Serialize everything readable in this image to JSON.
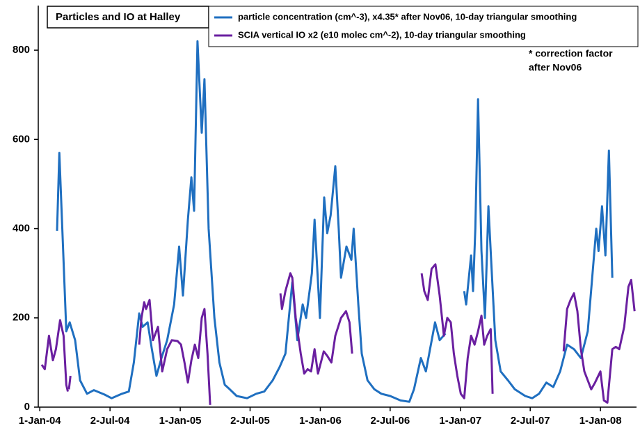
{
  "chart_data": {
    "type": "line",
    "title": "Particles and IO at Halley",
    "annotation": [
      "* correction factor",
      "after Nov06"
    ],
    "xlim": [
      "2003-12-28",
      "2008-04-04"
    ],
    "ylim": [
      0,
      900
    ],
    "yticks": [
      0,
      200,
      400,
      600,
      800
    ],
    "xticks": [
      {
        "value": "2004-01-01",
        "label": "1-Jan-04"
      },
      {
        "value": "2004-07-02",
        "label": "2-Jul-04"
      },
      {
        "value": "2005-01-01",
        "label": "1-Jan-05"
      },
      {
        "value": "2005-07-02",
        "label": "2-Jul-05"
      },
      {
        "value": "2006-01-01",
        "label": "1-Jan-06"
      },
      {
        "value": "2006-07-02",
        "label": "2-Jul-06"
      },
      {
        "value": "2007-01-01",
        "label": "1-Jan-07"
      },
      {
        "value": "2007-07-02",
        "label": "2-Jul-07"
      },
      {
        "value": "2008-01-01",
        "label": "1-Jan-08"
      }
    ],
    "series": [
      {
        "name": "particle concentration (cm^-3), x4.35* after Nov06, 10-day triangular smoothing",
        "color": "#1f6fc0",
        "x": [
          "2004-02-15",
          "2004-02-21",
          "2004-03-10",
          "2004-03-19",
          "2004-04-02",
          "2004-04-15",
          "2004-05-03",
          "2004-05-21",
          "2004-06-18",
          "2004-07-06",
          "2004-08-02",
          "2004-08-20",
          "2004-09-02",
          "2004-09-16",
          "2004-09-25",
          "2004-10-08",
          "2004-10-19",
          "2004-10-31",
          "2004-11-13",
          "2004-11-28",
          "2004-12-16",
          "2004-12-29",
          "2005-01-08",
          "2005-01-21",
          "2005-01-30",
          "2005-02-06",
          "2005-02-15",
          "2005-02-26",
          "2005-03-05",
          "2005-03-16",
          "2005-03-31",
          "2005-04-13",
          "2005-04-27",
          "2005-05-10",
          "2005-05-28",
          "2005-06-24",
          "2005-07-18",
          "2005-08-08",
          "2005-08-30",
          "2005-09-17",
          "2005-10-02",
          "2005-10-11",
          "2005-10-20",
          "2005-11-02",
          "2005-11-16",
          "2005-11-25",
          "2005-12-10",
          "2005-12-17",
          "2005-12-31",
          "2006-01-11",
          "2006-01-19",
          "2006-01-28",
          "2006-02-09",
          "2006-02-18",
          "2006-02-24",
          "2006-03-10",
          "2006-03-23",
          "2006-03-29",
          "2006-04-10",
          "2006-04-19",
          "2006-05-04",
          "2006-05-22",
          "2006-06-09",
          "2006-07-02",
          "2006-07-29",
          "2006-08-21",
          "2006-09-02",
          "2006-09-20",
          "2006-10-03",
          "2006-10-27",
          "2006-11-08",
          "2006-11-23",
          "2006-12-15",
          "2007-01-11",
          "2007-01-16",
          "2007-01-29",
          "2007-02-03",
          "2007-02-09",
          "2007-02-16",
          "2007-02-25",
          "2007-03-06",
          "2007-03-15",
          "2007-03-24",
          "2007-04-02",
          "2007-04-16",
          "2007-05-05",
          "2007-05-23",
          "2007-06-19",
          "2007-07-07",
          "2007-07-25",
          "2007-08-13",
          "2007-08-31",
          "2007-09-18",
          "2007-10-06",
          "2007-10-24",
          "2007-11-11",
          "2007-11-29",
          "2007-12-21",
          "2007-12-27",
          "2008-01-05",
          "2008-01-14",
          "2008-01-23",
          "2008-02-01"
        ],
        "values": [
          395,
          570,
          170,
          190,
          150,
          60,
          30,
          38,
          28,
          20,
          30,
          35,
          100,
          210,
          180,
          190,
          130,
          70,
          110,
          150,
          230,
          360,
          250,
          420,
          515,
          440,
          820,
          615,
          735,
          400,
          200,
          100,
          50,
          40,
          25,
          20,
          30,
          35,
          60,
          90,
          120,
          200,
          280,
          150,
          230,
          200,
          300,
          420,
          200,
          470,
          390,
          430,
          540,
          400,
          290,
          360,
          330,
          400,
          230,
          120,
          60,
          40,
          30,
          25,
          15,
          12,
          40,
          110,
          80,
          190,
          150,
          165,
          null,
          260,
          230,
          340,
          260,
          400,
          690,
          350,
          200,
          450,
          300,
          150,
          80,
          60,
          40,
          25,
          20,
          30,
          55,
          45,
          80,
          140,
          130,
          110,
          170,
          400,
          350,
          450,
          340,
          575,
          290
        ]
      },
      {
        "name": "SCIA vertical IO x2 (e10 molec cm^-2), 10-day triangular smoothing",
        "color": "#6a1fa0",
        "x": [
          "2004-01-06",
          "2004-01-14",
          "2004-01-25",
          "2004-02-04",
          "2004-02-12",
          "2004-02-23",
          "2004-03-03",
          "2004-03-10",
          "2004-03-14",
          "2004-03-16",
          "2004-03-17",
          "2004-03-21",
          "2004-06-01",
          "2004-09-16",
          "2004-09-22",
          "2004-09-29",
          "2004-10-04",
          "2004-10-13",
          "2004-10-22",
          "2004-11-04",
          "2004-11-15",
          "2004-11-28",
          "2004-12-10",
          "2004-12-25",
          "2005-01-03",
          "2005-01-12",
          "2005-01-21",
          "2005-01-30",
          "2005-02-08",
          "2005-02-17",
          "2005-02-26",
          "2005-03-05",
          "2005-03-13",
          "2005-03-20",
          "2005-07-01",
          "2005-09-19",
          "2005-09-23",
          "2005-10-02",
          "2005-10-15",
          "2005-10-20",
          "2005-10-29",
          "2005-11-11",
          "2005-11-20",
          "2005-11-29",
          "2005-12-08",
          "2005-12-17",
          "2005-12-26",
          "2006-01-10",
          "2006-01-19",
          "2006-01-30",
          "2006-02-09",
          "2006-02-24",
          "2006-03-09",
          "2006-03-18",
          "2006-03-25",
          "2006-07-01",
          "2006-09-22",
          "2006-09-29",
          "2006-10-08",
          "2006-10-18",
          "2006-10-28",
          "2006-11-08",
          "2006-11-19",
          "2006-11-28",
          "2006-12-07",
          "2006-12-15",
          "2006-12-24",
          "2007-01-02",
          "2007-01-11",
          "2007-01-20",
          "2007-01-29",
          "2007-02-07",
          "2007-02-16",
          "2007-02-25",
          "2007-03-04",
          "2007-03-12",
          "2007-03-21",
          "2007-03-26",
          "2007-07-01",
          "2007-09-27",
          "2007-10-06",
          "2007-10-15",
          "2007-10-24",
          "2007-11-02",
          "2007-11-11",
          "2007-11-20",
          "2007-11-29",
          "2007-12-08",
          "2007-12-18",
          "2008-01-01",
          "2008-01-10",
          "2008-01-19",
          "2008-02-01",
          "2008-02-10",
          "2008-02-19",
          "2008-03-03",
          "2008-03-14",
          "2008-03-21",
          "2008-03-30"
        ],
        "values": [
          95,
          85,
          160,
          105,
          130,
          195,
          160,
          50,
          35,
          null,
          40,
          70,
          null,
          140,
          200,
          235,
          220,
          240,
          150,
          180,
          80,
          130,
          150,
          148,
          140,
          100,
          55,
          105,
          140,
          110,
          200,
          220,
          120,
          5,
          null,
          255,
          220,
          260,
          300,
          290,
          200,
          120,
          75,
          85,
          80,
          130,
          75,
          125,
          115,
          100,
          160,
          200,
          215,
          190,
          120,
          null,
          300,
          260,
          240,
          310,
          320,
          250,
          160,
          200,
          190,
          120,
          70,
          30,
          20,
          110,
          160,
          140,
          170,
          205,
          140,
          160,
          175,
          30,
          null,
          125,
          220,
          240,
          255,
          215,
          130,
          80,
          60,
          40,
          55,
          80,
          15,
          10,
          130,
          135,
          130,
          180,
          270,
          285,
          215
        ]
      }
    ]
  }
}
